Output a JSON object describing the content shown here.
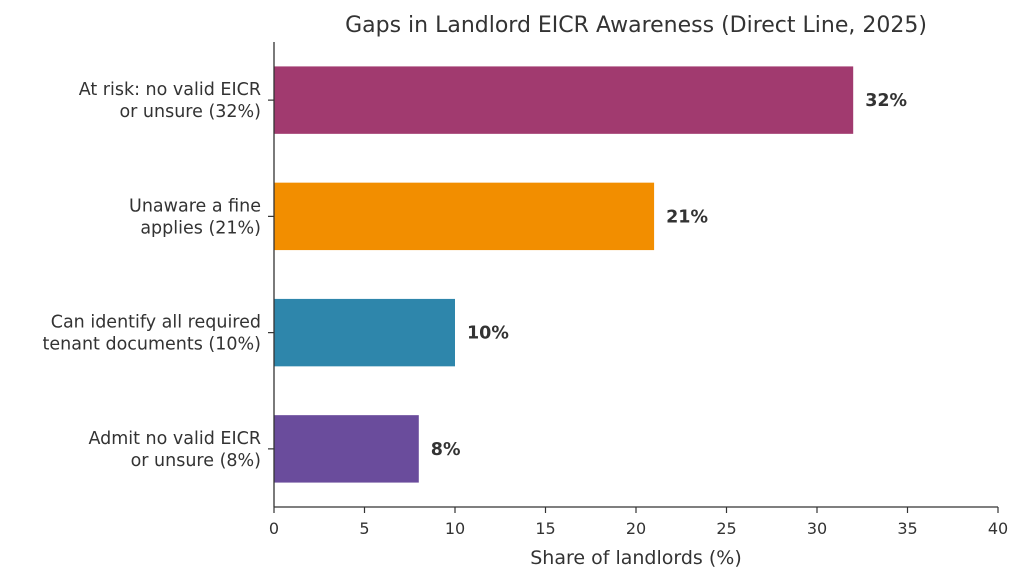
{
  "chart_data": {
    "type": "bar",
    "orientation": "horizontal",
    "title": "Gaps in Landlord EICR Awareness (Direct Line, 2025)",
    "xlabel": "Share of landlords (%)",
    "ylabel": "",
    "xlim": [
      0,
      40
    ],
    "xticks": [
      0,
      5,
      10,
      15,
      20,
      25,
      30,
      35,
      40
    ],
    "grid": false,
    "categories": [
      [
        "At risk: no valid EICR",
        "or unsure (32%)"
      ],
      [
        "Unaware a fine",
        "applies (21%)"
      ],
      [
        "Can identify all required",
        "tenant documents (10%)"
      ],
      [
        "Admit no valid EICR",
        "or unsure (8%)"
      ]
    ],
    "values": [
      32,
      21,
      10,
      8
    ],
    "value_labels": [
      "32%",
      "21%",
      "10%",
      "8%"
    ],
    "colors": [
      "#a13a6f",
      "#f28e00",
      "#2e86ab",
      "#6a4c9c"
    ]
  }
}
